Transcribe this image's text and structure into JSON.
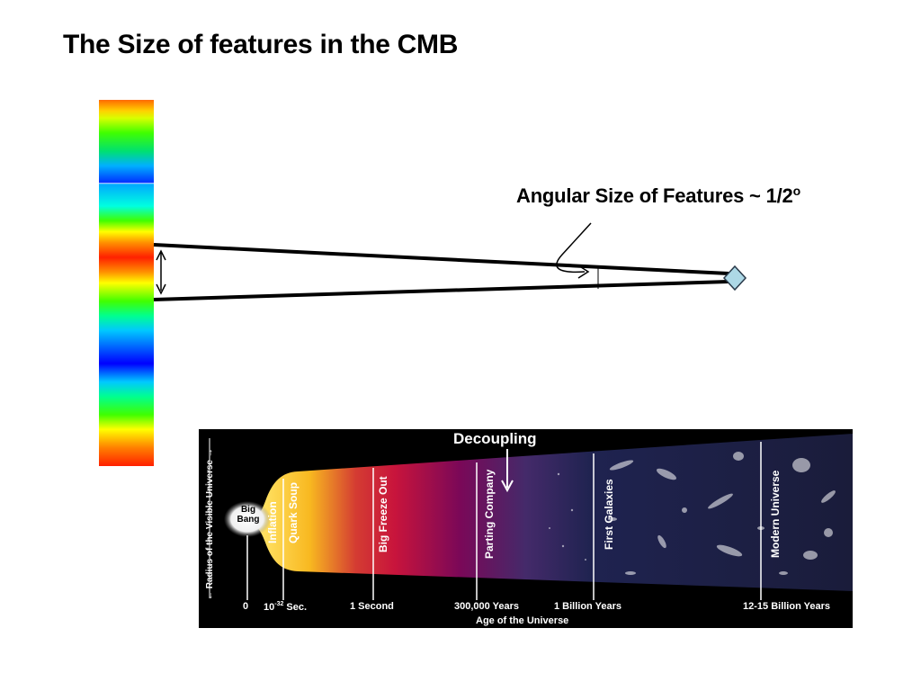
{
  "slide": {
    "title": "The Size of features in the CMB"
  },
  "cmb_strip": {
    "gradient": [
      "#ff2000",
      "#ffd000",
      "#40ff00",
      "#00b0ff",
      "#0030ff",
      "#00ffe0",
      "#ff2000",
      "#0000ff"
    ]
  },
  "angle_annotation": {
    "label": "Angular Size of Features ~ 1/2",
    "superscript": "o",
    "observer_color": "#add8e6"
  },
  "timeline": {
    "decoupling_label": "Decoupling",
    "big_bang": "Big Bang",
    "epochs": [
      "Inflation",
      "Quark Soup",
      "Big Freeze Out",
      "Parting Company",
      "First Galaxies",
      "Modern Universe"
    ],
    "ticks": {
      "zero": "0",
      "planck_base": "10",
      "planck_exp": "-32",
      "planck_unit": " Sec.",
      "one_second": "1 Second",
      "recombination": "300,000 Years",
      "billion": "1 Billion Years",
      "now": "12-15 Billion Years"
    },
    "x_axis_title": "Age of the Universe",
    "y_axis_title": "← Radius of the Visible Universe →"
  }
}
